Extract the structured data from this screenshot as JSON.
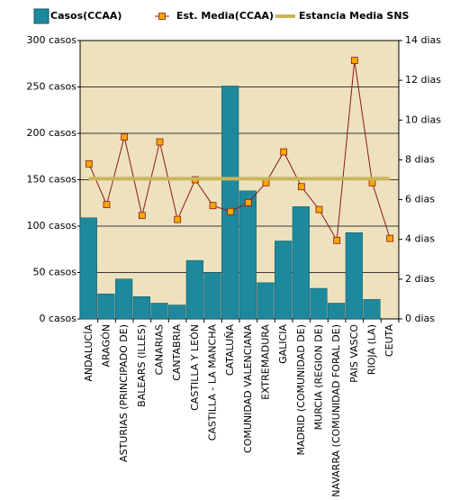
{
  "chart_data": {
    "type": "bar",
    "categories": [
      "ANDALUCÍA",
      "ARAGÓN",
      "ASTURIAS (PRINCIPADO DE)",
      "BALEARS (ILLES)",
      "CANARIAS",
      "CANTABRIA",
      "CASTILLA Y LEÓN",
      "CASTILLA - LA MANCHA",
      "CATALUÑA",
      "COMUNIDAD VALENCIANA",
      "EXTREMADURA",
      "GALICIA",
      "MADRID (COMUNIDAD DE)",
      "MURCIA (REGION DE)",
      "NAVARRA (COMUNIDAD FORAL DE)",
      "PAIS VASCO",
      "RIOJA (LA)",
      "CEUTA"
    ],
    "series": [
      {
        "name": "Casos(CCAA)",
        "type": "bar",
        "color": "#1e889c",
        "values": [
          109,
          27,
          43,
          24,
          17,
          15,
          63,
          50,
          251,
          138,
          39,
          84,
          121,
          33,
          17,
          93,
          21,
          null
        ]
      },
      {
        "name": "Est.  Media(CCAA)",
        "type": "line",
        "axis": "y2",
        "color": "#8b1a1a",
        "marker_color": "#f5a800",
        "values": [
          7.8,
          5.75,
          9.15,
          5.2,
          8.9,
          5.0,
          7.0,
          5.7,
          5.4,
          5.85,
          6.85,
          8.4,
          6.65,
          5.5,
          3.95,
          13.0,
          6.85,
          4.05
        ]
      },
      {
        "name": "Estancia Media SNS",
        "type": "line",
        "axis": "y2",
        "color": "#c8b55a",
        "values": [
          7.05,
          7.05,
          7.05,
          7.05,
          7.05,
          7.05,
          7.05,
          7.05,
          7.05,
          7.05,
          7.05,
          7.05,
          7.05,
          7.05,
          7.05,
          7.05,
          7.05,
          7.05
        ]
      }
    ],
    "ylim": [
      0,
      300
    ],
    "yticks": [
      {
        "value": 0,
        "label": "0 casos"
      },
      {
        "value": 50,
        "label": "50 casos"
      },
      {
        "value": 100,
        "label": "100 casos"
      },
      {
        "value": 150,
        "label": "150 casos"
      },
      {
        "value": 200,
        "label": "200 casos"
      },
      {
        "value": 250,
        "label": "250 casos"
      },
      {
        "value": 300,
        "label": "300 casos"
      }
    ],
    "y2lim": [
      0,
      14
    ],
    "y2ticks": [
      {
        "value": 0,
        "label": "0 dias"
      },
      {
        "value": 2,
        "label": "2 dias"
      },
      {
        "value": 4,
        "label": "4 dias"
      },
      {
        "value": 6,
        "label": "6 dias"
      },
      {
        "value": 8,
        "label": "8 dias"
      },
      {
        "value": 10,
        "label": "10 dias"
      },
      {
        "value": 12,
        "label": "12 dias"
      },
      {
        "value": 14,
        "label": "14 dias"
      }
    ],
    "grid": true,
    "background": "#ede2bd"
  }
}
